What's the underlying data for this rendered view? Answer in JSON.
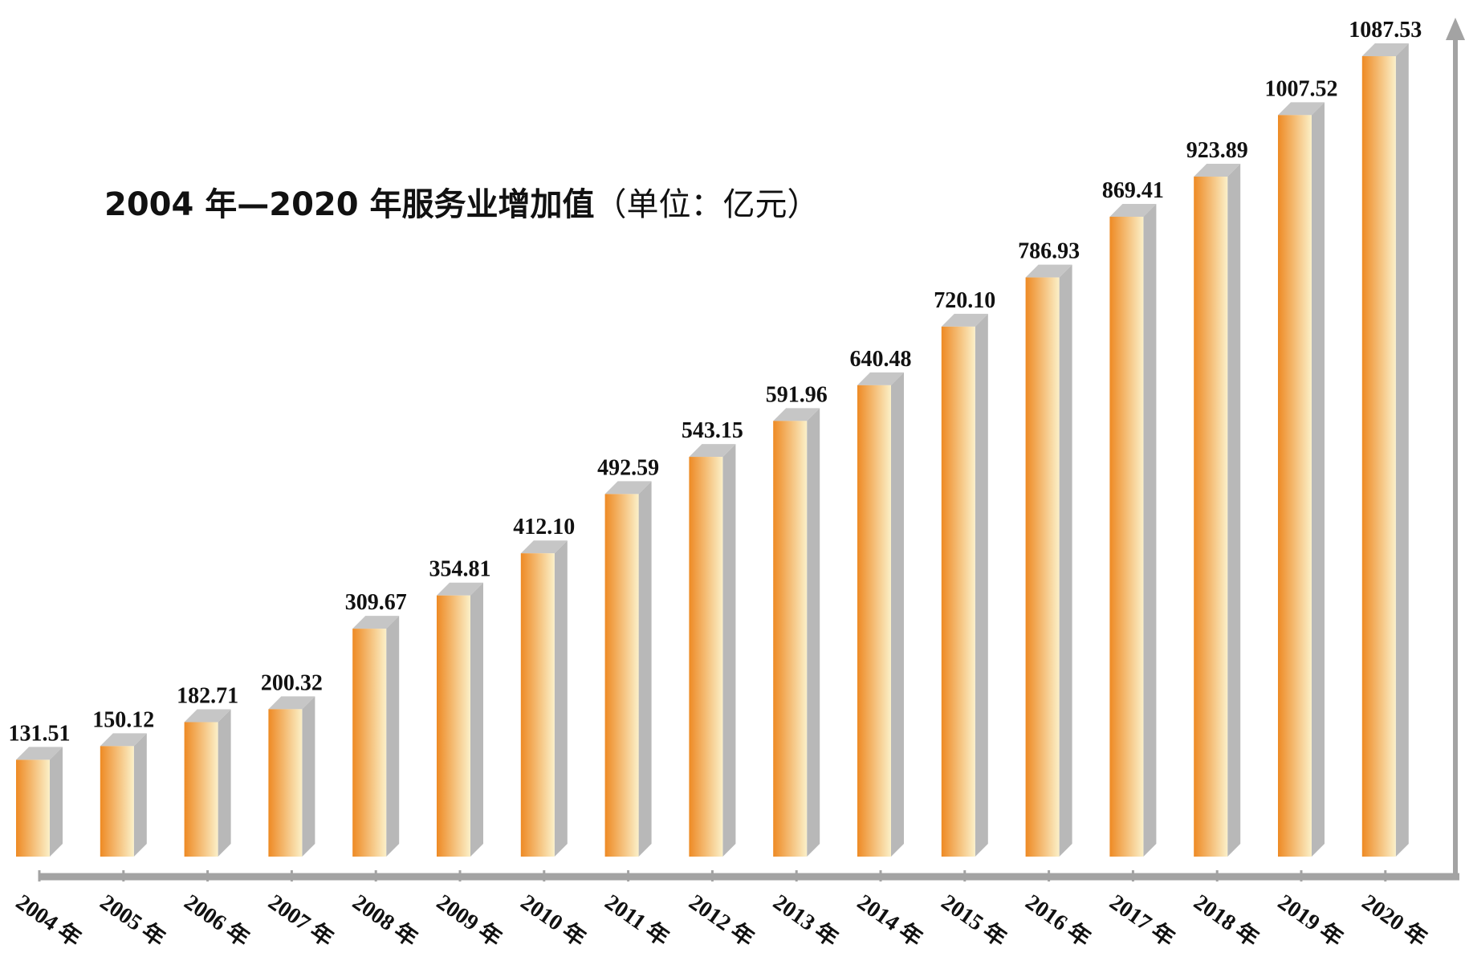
{
  "chart_data": {
    "type": "bar",
    "title": "2004 年—2020 年服务业增加值",
    "title_unit": "（单位：亿元）",
    "categories": [
      "2004 年",
      "2005 年",
      "2006 年",
      "2007 年",
      "2008 年",
      "2009 年",
      "2010 年",
      "2011 年",
      "2012 年",
      "2013 年",
      "2014 年",
      "2015 年",
      "2016 年",
      "2017 年",
      "2018 年",
      "2019 年",
      "2020 年"
    ],
    "series": [
      {
        "values": [
          131.51,
          150.12,
          182.71,
          200.32,
          309.67,
          354.81,
          412.1,
          492.59,
          543.15,
          591.96,
          640.48,
          720.1,
          786.93,
          869.41,
          923.89,
          1007.52,
          1087.53
        ],
        "value_labels": [
          "131.51",
          "150.12",
          "182.71",
          "200.32",
          "309.67",
          "354.81",
          "412.10",
          "492.59",
          "543.15",
          "591.96",
          "640.48",
          "720.10",
          "786.93",
          "869.41",
          "923.89",
          "1007.52",
          "1087.53"
        ]
      }
    ],
    "ylim": [
      0,
      1087.53
    ],
    "style": "3d-bar",
    "grid": false,
    "legend": "none",
    "colors": {
      "bar_dark": "#ee8a24",
      "bar_light": "#fbf0c8",
      "bar_side": "#b8b8b8",
      "bar_top": "#c6c6c6",
      "axis": "#a3a3a3"
    }
  }
}
